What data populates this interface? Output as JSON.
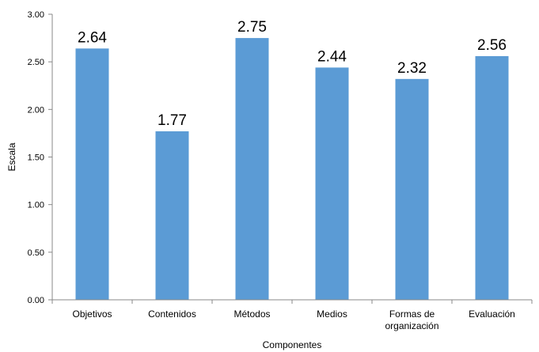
{
  "chart_data": {
    "type": "bar",
    "title": "",
    "xlabel": "Componentes",
    "ylabel": "Escala",
    "categories": [
      [
        "Objetivos"
      ],
      [
        "Contenidos"
      ],
      [
        "Métodos"
      ],
      [
        "Medios"
      ],
      [
        "Formas de",
        "organización"
      ],
      [
        "Evaluación"
      ]
    ],
    "values": [
      2.64,
      1.77,
      2.75,
      2.44,
      2.32,
      2.56
    ],
    "value_labels": [
      "2.64",
      "1.77",
      "2.75",
      "2.44",
      "2.32",
      "2.56"
    ],
    "ylim": [
      0,
      3
    ],
    "yticks": [
      "0.00",
      "0.50",
      "1.00",
      "1.50",
      "2.00",
      "2.50",
      "3.00"
    ],
    "grid": false,
    "legend": "none",
    "bar_color": "#5b9bd5",
    "axis_color": "#888888"
  }
}
